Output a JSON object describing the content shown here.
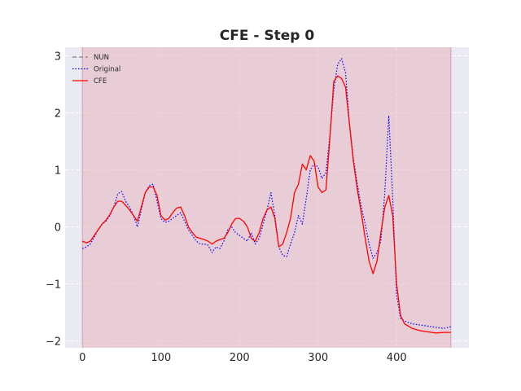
{
  "chart_data": {
    "type": "line",
    "title": "CFE - Step 0",
    "xlabel": "",
    "ylabel": "",
    "xlim": [
      -22,
      492
    ],
    "ylim": [
      -2.12,
      3.15
    ],
    "xticks": [
      0,
      100,
      200,
      300,
      400
    ],
    "yticks": [
      -2,
      -1,
      0,
      1,
      2,
      3
    ],
    "xtick_labels": [
      "0",
      "100",
      "200",
      "300",
      "400"
    ],
    "ytick_labels": [
      "−2",
      "−1",
      "0",
      "1",
      "2",
      "3"
    ],
    "grid": true,
    "legend_position": "top-left",
    "highlight_region": {
      "x_start": 0,
      "x_end": 469,
      "color": "#e8b4c0"
    },
    "series": [
      {
        "name": "NUN",
        "style": "dashed",
        "color": "#808080",
        "x": [],
        "y": []
      },
      {
        "name": "Original",
        "style": "dotted",
        "color": "#0000ff",
        "x": [
          0,
          5,
          10,
          15,
          20,
          25,
          30,
          35,
          40,
          45,
          50,
          55,
          60,
          65,
          70,
          75,
          80,
          85,
          90,
          95,
          100,
          105,
          110,
          115,
          120,
          125,
          130,
          135,
          140,
          145,
          150,
          155,
          160,
          165,
          170,
          175,
          180,
          185,
          190,
          195,
          200,
          205,
          210,
          215,
          220,
          225,
          230,
          235,
          240,
          245,
          250,
          255,
          260,
          265,
          270,
          275,
          280,
          285,
          290,
          295,
          300,
          305,
          310,
          315,
          320,
          325,
          330,
          335,
          340,
          345,
          350,
          355,
          360,
          365,
          370,
          375,
          380,
          385,
          390,
          395,
          400,
          405,
          410,
          420,
          430,
          440,
          450,
          460,
          469
        ],
        "y": [
          -0.38,
          -0.35,
          -0.3,
          -0.18,
          -0.05,
          0.05,
          0.1,
          0.2,
          0.35,
          0.58,
          0.62,
          0.45,
          0.35,
          0.2,
          0.0,
          0.3,
          0.6,
          0.72,
          0.75,
          0.45,
          0.15,
          0.08,
          0.1,
          0.15,
          0.2,
          0.25,
          0.1,
          -0.05,
          -0.15,
          -0.25,
          -0.3,
          -0.3,
          -0.32,
          -0.45,
          -0.35,
          -0.38,
          -0.25,
          -0.05,
          0.0,
          -0.1,
          -0.15,
          -0.2,
          -0.25,
          -0.1,
          -0.3,
          -0.2,
          0.05,
          0.3,
          0.6,
          0.2,
          -0.35,
          -0.5,
          -0.52,
          -0.3,
          -0.1,
          0.2,
          0.05,
          0.5,
          1.0,
          1.1,
          1.05,
          0.85,
          0.95,
          1.6,
          2.4,
          2.85,
          2.95,
          2.7,
          1.8,
          1.2,
          0.75,
          0.35,
          0.05,
          -0.3,
          -0.55,
          -0.45,
          -0.25,
          0.6,
          1.95,
          0.5,
          -1.2,
          -1.6,
          -1.65,
          -1.7,
          -1.72,
          -1.74,
          -1.76,
          -1.78,
          -1.75
        ]
      },
      {
        "name": "CFE",
        "style": "solid",
        "color": "#ff0000",
        "x": [
          0,
          5,
          10,
          15,
          20,
          25,
          30,
          35,
          40,
          45,
          50,
          55,
          60,
          65,
          70,
          75,
          80,
          85,
          90,
          95,
          100,
          105,
          110,
          115,
          120,
          125,
          130,
          135,
          140,
          145,
          150,
          155,
          160,
          165,
          170,
          175,
          180,
          185,
          190,
          195,
          200,
          205,
          210,
          215,
          220,
          225,
          230,
          235,
          240,
          245,
          250,
          255,
          260,
          265,
          270,
          275,
          280,
          285,
          290,
          295,
          300,
          305,
          310,
          315,
          320,
          325,
          330,
          335,
          340,
          345,
          350,
          355,
          360,
          365,
          370,
          375,
          380,
          385,
          390,
          395,
          400,
          405,
          410,
          420,
          430,
          440,
          450,
          460,
          469
        ],
        "y": [
          -0.25,
          -0.28,
          -0.25,
          -0.15,
          -0.05,
          0.05,
          0.12,
          0.22,
          0.35,
          0.45,
          0.45,
          0.38,
          0.3,
          0.2,
          0.1,
          0.35,
          0.6,
          0.7,
          0.7,
          0.55,
          0.2,
          0.12,
          0.15,
          0.25,
          0.33,
          0.35,
          0.2,
          0.0,
          -0.1,
          -0.18,
          -0.2,
          -0.22,
          -0.25,
          -0.3,
          -0.25,
          -0.22,
          -0.2,
          -0.1,
          0.05,
          0.15,
          0.15,
          0.1,
          0.0,
          -0.2,
          -0.25,
          -0.1,
          0.15,
          0.3,
          0.35,
          0.15,
          -0.35,
          -0.3,
          -0.1,
          0.15,
          0.6,
          0.75,
          1.1,
          1.0,
          1.25,
          1.15,
          0.7,
          0.6,
          0.65,
          1.55,
          2.55,
          2.65,
          2.6,
          2.45,
          1.8,
          1.15,
          0.65,
          0.25,
          -0.2,
          -0.6,
          -0.82,
          -0.6,
          -0.1,
          0.35,
          0.55,
          0.2,
          -1.0,
          -1.55,
          -1.7,
          -1.78,
          -1.82,
          -1.84,
          -1.86,
          -1.85,
          -1.85
        ]
      }
    ]
  }
}
